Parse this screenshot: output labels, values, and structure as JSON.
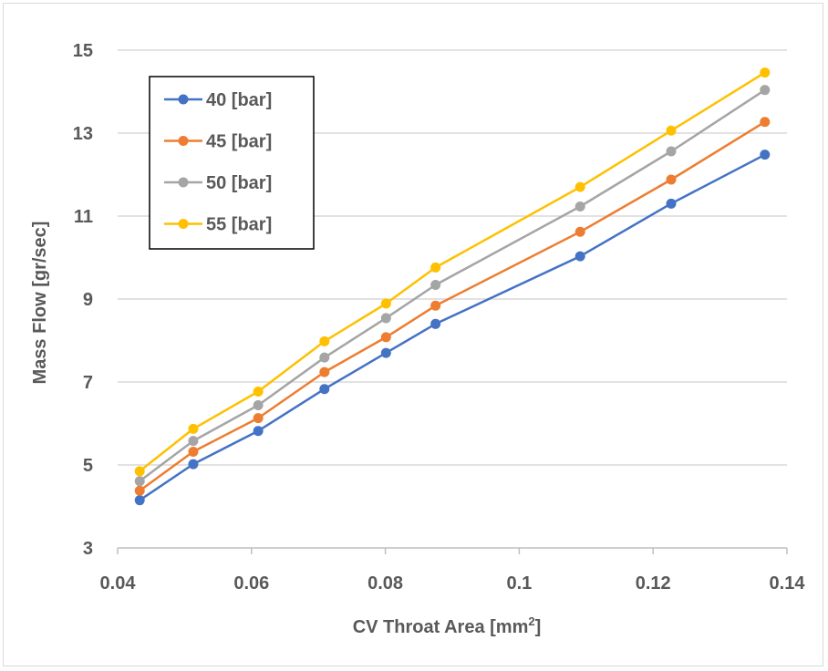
{
  "chart_data": {
    "type": "line",
    "title": "",
    "xlabel": "CV Throat Area [mm",
    "xlabel_sup": "2",
    "xlabel_end": "]",
    "ylabel": "Mass Flow [gr/sec]",
    "xlim": [
      0.04,
      0.14
    ],
    "ylim": [
      3,
      15
    ],
    "x_ticks": [
      0.04,
      0.06,
      0.08,
      0.1,
      0.12,
      0.14
    ],
    "x_tick_labels": [
      "0.04",
      "0.06",
      "0.08",
      "0.1",
      "0.12",
      "0.14"
    ],
    "y_ticks": [
      3,
      5,
      7,
      9,
      11,
      13,
      15
    ],
    "y_tick_labels": [
      "3",
      "5",
      "7",
      "9",
      "11",
      "13",
      "15"
    ],
    "grid": "horizontal",
    "legend_position": "top-left",
    "x": [
      0.0433,
      0.0513,
      0.061,
      0.0709,
      0.0801,
      0.0875,
      0.1091,
      0.1227,
      0.1367
    ],
    "series": [
      {
        "name": "40 [bar]",
        "color": "#4472c4",
        "values": [
          4.15,
          5.02,
          5.82,
          6.83,
          7.7,
          8.4,
          10.03,
          11.3,
          12.48
        ]
      },
      {
        "name": "45 [bar]",
        "color": "#ed7d31",
        "values": [
          4.38,
          5.32,
          6.13,
          7.24,
          8.08,
          8.84,
          10.62,
          11.88,
          13.27
        ]
      },
      {
        "name": "50 [bar]",
        "color": "#a5a5a5",
        "values": [
          4.61,
          5.58,
          6.44,
          7.59,
          8.54,
          9.34,
          11.23,
          12.56,
          14.04
        ]
      },
      {
        "name": "55 [bar]",
        "color": "#ffc000",
        "values": [
          4.85,
          5.87,
          6.77,
          7.98,
          8.89,
          9.76,
          11.7,
          13.06,
          14.46
        ]
      }
    ]
  }
}
